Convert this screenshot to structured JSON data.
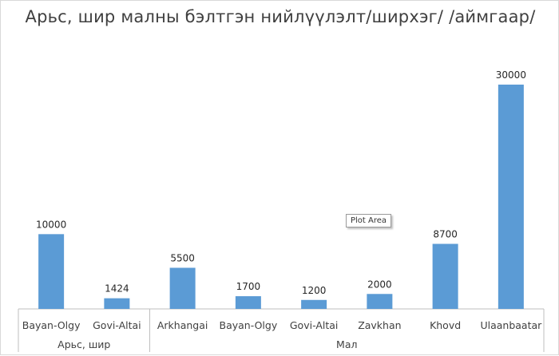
{
  "chart_data": {
    "type": "bar",
    "title": "Арьс, шир малны бэлтгэн нийлүүлэлт/ширхэг/ /аймгаар/",
    "xlabel": "",
    "ylabel": "",
    "ylim": [
      0,
      30000
    ],
    "grid": false,
    "legend": "none",
    "bar_color": "#5b9bd5",
    "categories": [
      "Bayan-Olgy",
      "Govi-Altai",
      "Arkhangai",
      "Bayan-Olgy",
      "Govi-Altai",
      "Zavkhan",
      "Khovd",
      "Ulaanbaatar"
    ],
    "values": [
      10000,
      1424,
      5500,
      1700,
      1200,
      2000,
      8700,
      30000
    ],
    "groups": [
      {
        "label": "Арьс, шир",
        "count": 2
      },
      {
        "label": "Мал",
        "count": 6
      }
    ]
  },
  "tooltip": {
    "text": "Plot Area"
  }
}
